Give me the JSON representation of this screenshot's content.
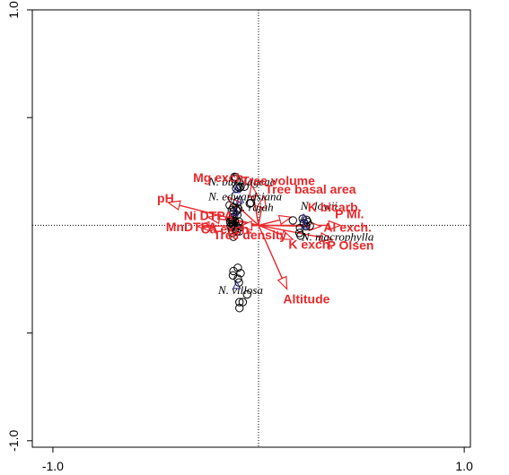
{
  "chart_data": {
    "type": "scatter",
    "subtype": "ordination biplot",
    "xlim": [
      -1.1,
      1.03
    ],
    "ylim": [
      -1.03,
      1.0
    ],
    "x_ticks": [
      {
        "value": -1.0,
        "label": "-1.0"
      },
      {
        "value": 1.0,
        "label": "1.0"
      }
    ],
    "y_ticks": [
      {
        "value": 1.0,
        "label": "1.0"
      },
      {
        "value": 0.5,
        "label": ""
      },
      {
        "value": -0.5,
        "label": ""
      },
      {
        "value": -1.0,
        "label": "-1.0"
      }
    ],
    "reference_lines": {
      "x": 0,
      "y": 0,
      "style": "dotted"
    },
    "colors": {
      "arrows": "#e8282b",
      "centroids": "#2a2a9c",
      "sites": "#000000"
    },
    "sites": [
      {
        "x": -0.44,
        "y": 0.89
      },
      {
        "x": -0.42,
        "y": 0.88
      },
      {
        "x": -0.44,
        "y": 0.85
      },
      {
        "x": -0.38,
        "y": 0.71
      },
      {
        "x": -0.33,
        "y": 0.71
      },
      {
        "x": -0.26,
        "y": 0.71
      },
      {
        "x": -0.35,
        "y": 0.69
      },
      {
        "x": -0.41,
        "y": 0.68
      },
      {
        "x": -0.39,
        "y": 0.43
      },
      {
        "x": -0.14,
        "y": 0.41
      },
      {
        "x": -0.16,
        "y": 0.4
      },
      {
        "x": -0.53,
        "y": 0.37
      },
      {
        "x": -0.46,
        "y": 0.33
      },
      {
        "x": -0.37,
        "y": 0.3
      },
      {
        "x": -0.49,
        "y": 0.28
      },
      {
        "x": -0.4,
        "y": 0.27
      },
      {
        "x": -0.46,
        "y": 0.25
      },
      {
        "x": -0.47,
        "y": 0.2
      },
      {
        "x": -0.39,
        "y": 0.19
      },
      {
        "x": -0.45,
        "y": 0.15
      },
      {
        "x": -0.47,
        "y": 0.12
      },
      {
        "x": -0.51,
        "y": 0.1
      },
      {
        "x": -0.48,
        "y": 0.09
      },
      {
        "x": -0.44,
        "y": 0.08
      },
      {
        "x": -0.36,
        "y": 0.07
      },
      {
        "x": -0.52,
        "y": 0.06
      },
      {
        "x": -0.47,
        "y": 0.04
      },
      {
        "x": -0.49,
        "y": 0.02
      },
      {
        "x": -0.46,
        "y": 0.0
      },
      {
        "x": -0.41,
        "y": -0.01
      },
      {
        "x": -0.51,
        "y": -0.02
      },
      {
        "x": -0.47,
        "y": -0.03
      },
      {
        "x": -0.36,
        "y": -0.05
      },
      {
        "x": -0.43,
        "y": -0.06
      },
      {
        "x": -0.49,
        "y": -0.09
      },
      {
        "x": -0.48,
        "y": -0.14
      },
      {
        "x": -0.4,
        "y": -0.12
      },
      {
        "x": -0.35,
        "y": -0.11
      },
      {
        "x": -0.46,
        "y": -0.21
      },
      {
        "x": 0.63,
        "y": 0.09
      },
      {
        "x": 0.81,
        "y": 0.12
      },
      {
        "x": 0.88,
        "y": 0.1
      },
      {
        "x": 0.9,
        "y": 0.06
      },
      {
        "x": 0.83,
        "y": 0.04
      },
      {
        "x": 0.94,
        "y": -0.01
      },
      {
        "x": 0.87,
        "y": -0.02
      },
      {
        "x": 0.76,
        "y": -0.05
      },
      {
        "x": 0.75,
        "y": -0.14
      },
      {
        "x": 0.77,
        "y": -0.19
      },
      {
        "x": -0.38,
        "y": -0.78
      },
      {
        "x": -0.46,
        "y": -0.84
      },
      {
        "x": -0.33,
        "y": -0.88
      },
      {
        "x": -0.47,
        "y": -0.92
      },
      {
        "x": -0.38,
        "y": -0.98
      },
      {
        "x": -0.36,
        "y": -1.05
      },
      {
        "x": -0.21,
        "y": -1.27
      },
      {
        "x": -0.35,
        "y": -1.41
      },
      {
        "x": -0.29,
        "y": -1.41
      },
      {
        "x": -0.35,
        "y": -1.52
      }
    ],
    "centroids": [
      {
        "x": -0.4,
        "y": 0.65,
        "name": "N. burbidgeae"
      },
      {
        "x": -0.34,
        "y": 0.47,
        "name": "N. edwardsiana"
      },
      {
        "x": -0.43,
        "y": 0.24,
        "name": "N. rajah"
      },
      {
        "x": 0.83,
        "y": 0.13,
        "name": "N. lowii"
      },
      {
        "x": 0.85,
        "y": -0.01,
        "name": "N. macrophylla"
      },
      {
        "x": -0.4,
        "y": -1.11,
        "name": "N. villosa"
      }
    ],
    "species_labels": [
      {
        "text": "N. burbidgeae",
        "x": -0.92,
        "y": 0.73
      },
      {
        "text": "N. edwardsiana",
        "x": -0.92,
        "y": 0.46
      },
      {
        "text": "N. rajah",
        "x": -0.44,
        "y": 0.26
      },
      {
        "text": "N. lowii",
        "x": 0.77,
        "y": 0.29
      },
      {
        "text": "N. macrophylla",
        "x": 0.79,
        "y": -0.28
      },
      {
        "text": "N. villosa",
        "x": -0.74,
        "y": -1.26
      }
    ],
    "arrows": [
      {
        "name": "Mg exch.",
        "end": [
          -0.57,
          0.52
        ],
        "label_at": [
          -1.2,
          0.8
        ]
      },
      {
        "name": "Tree volume",
        "end": [
          -0.13,
          0.74
        ],
        "label_at": [
          -0.31,
          0.74
        ]
      },
      {
        "name": "Tree basal area",
        "end": [
          0.1,
          0.54
        ],
        "label_at": [
          0.12,
          0.58
        ]
      },
      {
        "name": "pH",
        "end": [
          -1.66,
          0.42
        ],
        "label_at": [
          -1.86,
          0.42
        ]
      },
      {
        "name": "K bicarb.",
        "end": [
          0.6,
          0.15
        ],
        "label_at": [
          0.9,
          0.25
        ]
      },
      {
        "name": "P Mi.",
        "end": [
          1.5,
          0.0
        ],
        "label_at": [
          1.4,
          0.13
        ]
      },
      {
        "name": "Ni DTPA",
        "end": [
          -0.93,
          0.15
        ],
        "label_at": [
          -1.37,
          0.1
        ]
      },
      {
        "name": "MnDTPA",
        "end": [
          -1.12,
          -0.02
        ],
        "label_at": [
          -1.7,
          -0.11
        ]
      },
      {
        "name": "Ca exch.",
        "end": [
          -0.51,
          -0.02
        ],
        "label_at": [
          -1.06,
          -0.15
        ]
      },
      {
        "name": "Tree density",
        "end": [
          -0.34,
          -0.02
        ],
        "label_at": [
          -0.83,
          -0.26
        ]
      },
      {
        "name": "Al exch.",
        "end": [
          1.14,
          -0.02
        ],
        "label_at": [
          1.19,
          -0.12
        ]
      },
      {
        "name": "K exch.",
        "end": [
          0.63,
          -0.26
        ],
        "label_at": [
          0.55,
          -0.43
        ]
      },
      {
        "name": "P Olsen",
        "end": [
          1.35,
          -0.26
        ],
        "label_at": [
          1.26,
          -0.45
        ]
      },
      {
        "name": "Altitude",
        "end": [
          0.52,
          -1.17
        ],
        "label_at": [
          0.45,
          -1.43
        ]
      }
    ]
  }
}
